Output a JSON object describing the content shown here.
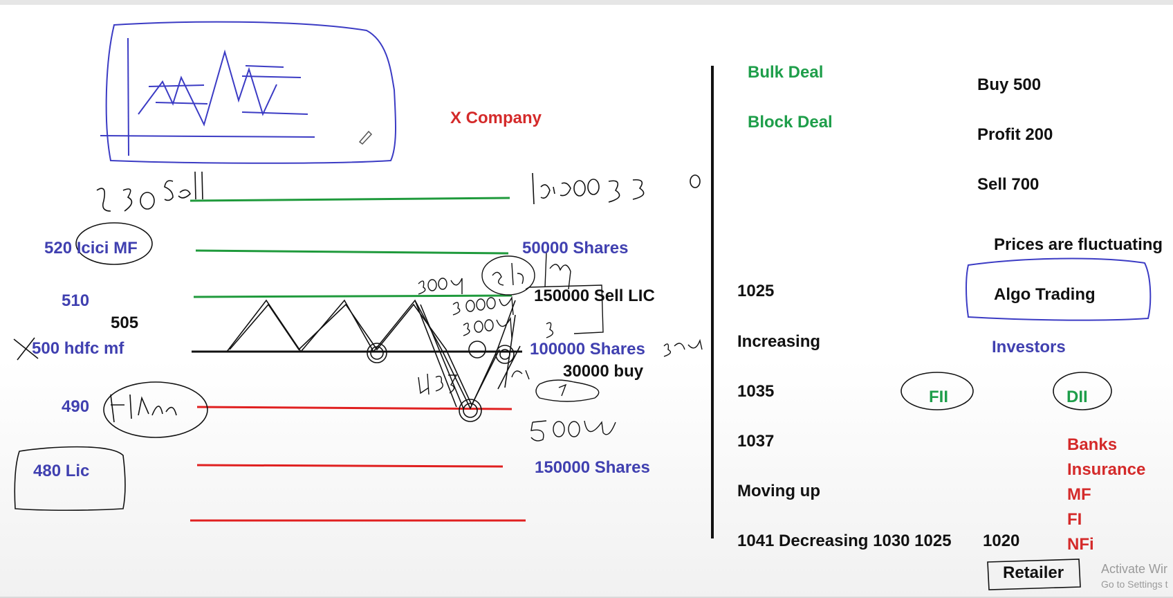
{
  "board": {
    "title": "X Company",
    "handwritten_note": "530 Sell",
    "handwritten_figure": "10,000 530",
    "pencil_tool": "pencil-icon"
  },
  "left_labels": {
    "icici": "520 Icici MF",
    "l510": "510",
    "l505": "505",
    "hdfc": "500 hdfc mf",
    "l490": "490",
    "lic480": "480 Lic"
  },
  "right_of_lines": {
    "shares_50000": "50000 Shares",
    "sell_lic": "150000 Sell LIC",
    "shares_100000": "100000 Shares",
    "buy_30000": "30000 buy",
    "shares_150000": "150000 Shares"
  },
  "right_panel": {
    "bulk_deal": "Bulk Deal",
    "block_deal": "Block Deal",
    "buy": "Buy  500",
    "profit": "Profit 200",
    "sell": "Sell 700",
    "prices_fluctuating": "Prices are fluctuating",
    "algo_trading": "Algo Trading",
    "p1025": "1025",
    "increasing": "Increasing",
    "investors": "Investors",
    "p1035": "1035",
    "fii": "FII",
    "dii": "DII",
    "p1037": "1037",
    "moving_up": "Moving up",
    "decreasing_line": "1041 Decreasing 1030 1025",
    "p1020": "1020",
    "institutions": [
      "Banks",
      "Insurance",
      "MF",
      "FI",
      "NFi"
    ],
    "retailer": "Retailer"
  },
  "watermark": {
    "line1": "Activate Wir",
    "line2": "Go to Settings t"
  },
  "colors": {
    "blue_text": "#4040b0",
    "green_text": "#1e9e4a",
    "red_text": "#d42a2a",
    "green_line": "#1f9a3c",
    "red_line": "#e02020",
    "ink": "#111111",
    "box_blue": "#3b3bc4"
  }
}
